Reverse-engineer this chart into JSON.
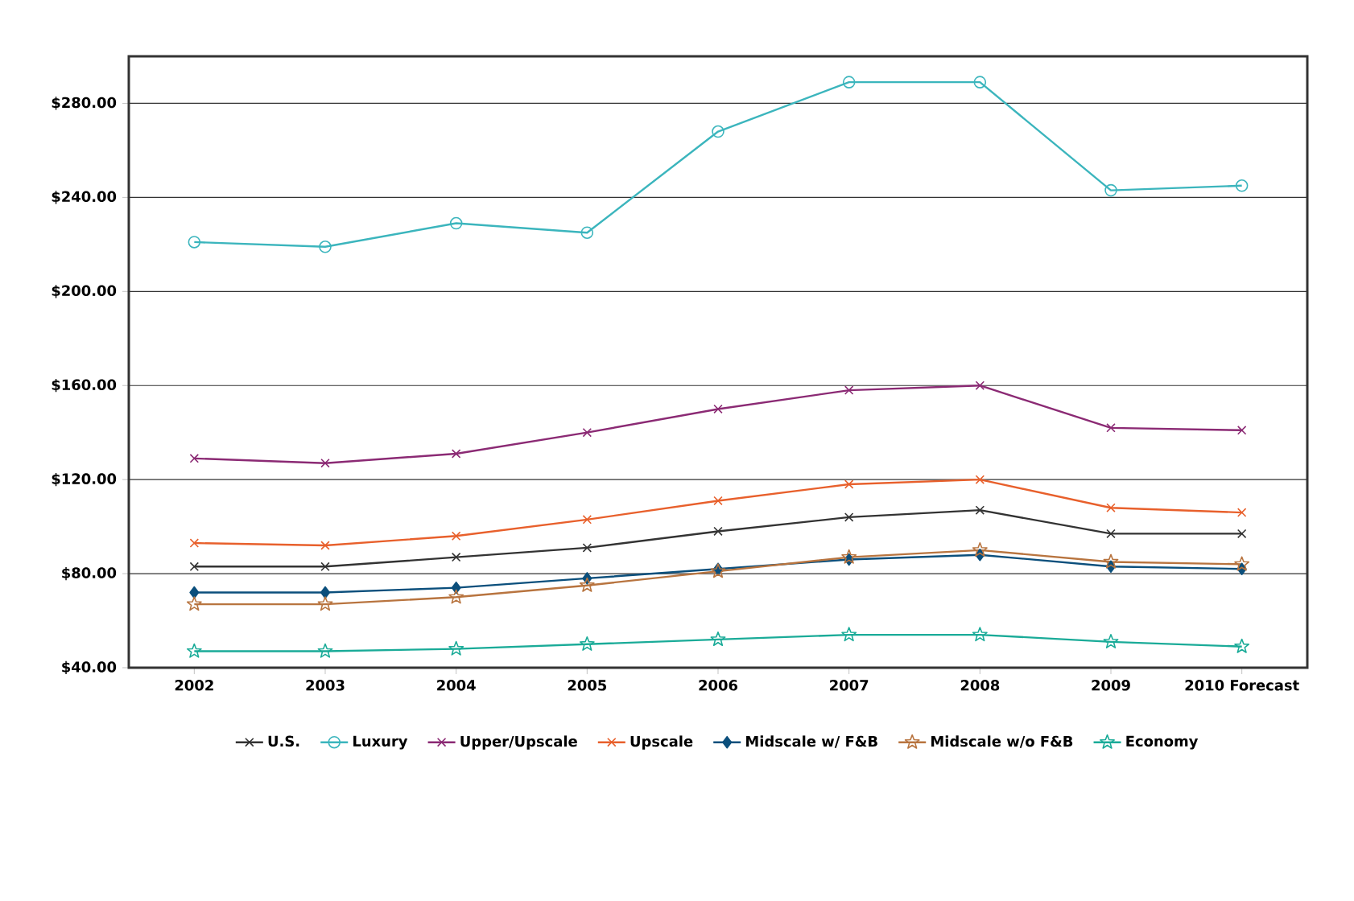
{
  "chart_data": {
    "type": "line",
    "categories": [
      "2002",
      "2003",
      "2004",
      "2005",
      "2006",
      "2007",
      "2008",
      "2009",
      "2010 Forecast"
    ],
    "ylim": [
      40,
      300
    ],
    "yticks": [
      {
        "value": 40,
        "label": "$40.00"
      },
      {
        "value": 80,
        "label": "$80.00"
      },
      {
        "value": 120,
        "label": "$120.00"
      },
      {
        "value": 160,
        "label": "$160.00"
      },
      {
        "value": 200,
        "label": "$200.00"
      },
      {
        "value": 240,
        "label": "$240.00"
      },
      {
        "value": 280,
        "label": "$280.00"
      }
    ],
    "grid": "y",
    "legend": "bottom",
    "line_style": "solid",
    "series": [
      {
        "name": "U.S.",
        "color": "#333333",
        "marker": "cross",
        "values": [
          83,
          83,
          87,
          91,
          98,
          104,
          107,
          97,
          97
        ]
      },
      {
        "name": "Luxury",
        "color": "#3bb5bd",
        "marker": "circle",
        "values": [
          221,
          219,
          229,
          225,
          268,
          289,
          289,
          243,
          245
        ]
      },
      {
        "name": "Upper/Upscale",
        "color": "#8b2a74",
        "marker": "cross",
        "values": [
          129,
          127,
          131,
          140,
          150,
          158,
          160,
          142,
          141
        ]
      },
      {
        "name": "Upscale",
        "color": "#e8602c",
        "marker": "cross",
        "values": [
          93,
          92,
          96,
          103,
          111,
          118,
          120,
          108,
          106
        ]
      },
      {
        "name": "Midscale w/ F&B",
        "color": "#0b4f7c",
        "marker": "diamond",
        "values": [
          72,
          72,
          74,
          78,
          82,
          86,
          88,
          83,
          82
        ]
      },
      {
        "name": "Midscale w/o F&B",
        "color": "#b8743f",
        "marker": "star",
        "values": [
          67,
          67,
          70,
          75,
          81,
          87,
          90,
          85,
          84
        ]
      },
      {
        "name": "Economy",
        "color": "#1aab98",
        "marker": "star",
        "values": [
          47,
          47,
          48,
          50,
          52,
          54,
          54,
          51,
          49
        ]
      }
    ]
  }
}
